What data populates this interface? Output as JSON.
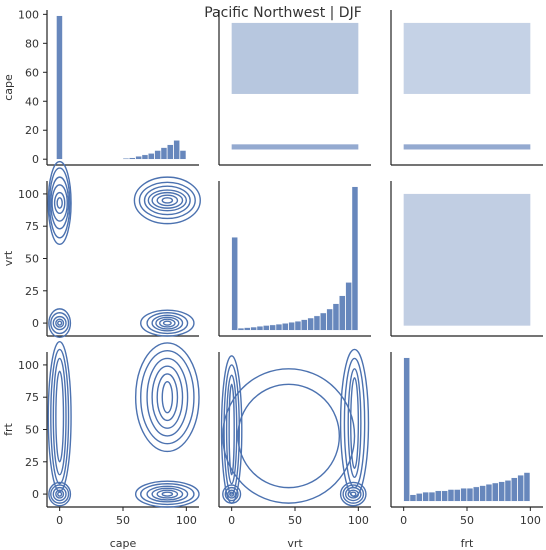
{
  "title": "Pacific Northwest | DJF",
  "colors": {
    "accent": "#4c72b0",
    "accent_dark": "#2c3f63",
    "fill_light": "#4c72b0"
  },
  "chart_data": {
    "type": "pairplot",
    "title": "Pacific Northwest | DJF",
    "variables": [
      "cape",
      "vrt",
      "frt"
    ],
    "axis_range": [
      -10,
      110
    ],
    "ticks": [
      0,
      50,
      100
    ],
    "diag_y_ticks": [
      0,
      20,
      40,
      60,
      80,
      100
    ],
    "offdiag_y_ticks": [
      0,
      25,
      50,
      75,
      100
    ],
    "grid": false,
    "panels": [
      {
        "id": "cape-hist",
        "row": "cape",
        "col": "cape",
        "kind": "histogram",
        "bars": [
          {
            "x": 0,
            "h": 99
          },
          {
            "x": 52.5,
            "h": 0.6
          },
          {
            "x": 57.5,
            "h": 1
          },
          {
            "x": 62.5,
            "h": 2
          },
          {
            "x": 67.5,
            "h": 3
          },
          {
            "x": 72.5,
            "h": 4
          },
          {
            "x": 77.5,
            "h": 6
          },
          {
            "x": 82.5,
            "h": 8
          },
          {
            "x": 87.5,
            "h": 10
          },
          {
            "x": 92.5,
            "h": 13
          },
          {
            "x": 97.5,
            "h": 6
          }
        ]
      },
      {
        "id": "vrt-hist",
        "row": "vrt",
        "col": "vrt",
        "kind": "histogram",
        "bars": [
          {
            "x": 2.5,
            "h": 35
          },
          {
            "x": 7.5,
            "h": 0.8
          },
          {
            "x": 12.5,
            "h": 1
          },
          {
            "x": 17.5,
            "h": 1.2
          },
          {
            "x": 22.5,
            "h": 1.5
          },
          {
            "x": 27.5,
            "h": 1.8
          },
          {
            "x": 32.5,
            "h": 2
          },
          {
            "x": 37.5,
            "h": 2.3
          },
          {
            "x": 42.5,
            "h": 2.6
          },
          {
            "x": 47.5,
            "h": 3
          },
          {
            "x": 52.5,
            "h": 3.4
          },
          {
            "x": 57.5,
            "h": 4
          },
          {
            "x": 62.5,
            "h": 4.6
          },
          {
            "x": 67.5,
            "h": 5.4
          },
          {
            "x": 72.5,
            "h": 6.5
          },
          {
            "x": 77.5,
            "h": 8
          },
          {
            "x": 82.5,
            "h": 10
          },
          {
            "x": 87.5,
            "h": 13
          },
          {
            "x": 92.5,
            "h": 18
          },
          {
            "x": 97.5,
            "h": 54
          }
        ]
      },
      {
        "id": "frt-hist",
        "row": "frt",
        "col": "frt",
        "kind": "histogram",
        "bars": [
          {
            "x": 2.5,
            "h": 110
          },
          {
            "x": 7.5,
            "h": 5
          },
          {
            "x": 12.5,
            "h": 6
          },
          {
            "x": 17.5,
            "h": 7
          },
          {
            "x": 22.5,
            "h": 7
          },
          {
            "x": 27.5,
            "h": 8
          },
          {
            "x": 32.5,
            "h": 8
          },
          {
            "x": 37.5,
            "h": 9
          },
          {
            "x": 42.5,
            "h": 9
          },
          {
            "x": 47.5,
            "h": 10
          },
          {
            "x": 52.5,
            "h": 10
          },
          {
            "x": 57.5,
            "h": 11
          },
          {
            "x": 62.5,
            "h": 12
          },
          {
            "x": 67.5,
            "h": 13
          },
          {
            "x": 72.5,
            "h": 14
          },
          {
            "x": 77.5,
            "h": 15
          },
          {
            "x": 82.5,
            "h": 16
          },
          {
            "x": 87.5,
            "h": 18
          },
          {
            "x": 92.5,
            "h": 20
          },
          {
            "x": 97.5,
            "h": 22
          }
        ]
      },
      {
        "id": "vrt-vs-cape",
        "row": "cape",
        "col": "vrt",
        "kind": "hist2d",
        "x_range": [
          0,
          100
        ],
        "bands": [
          {
            "y_range": [
              2,
              6
            ],
            "color": "#4c72b0",
            "opacity": 0.6
          },
          {
            "y_range": [
              45,
              100
            ],
            "color": "#4c72b0",
            "opacity": 0.4
          }
        ]
      },
      {
        "id": "frt-vs-cape",
        "row": "cape",
        "col": "frt",
        "kind": "hist2d",
        "x_range": [
          0,
          100
        ],
        "bands": [
          {
            "y_range": [
              2,
              6
            ],
            "color": "#4c72b0",
            "opacity": 0.6
          },
          {
            "y_range": [
              45,
              100
            ],
            "color": "#4c72b0",
            "opacity": 0.32
          }
        ]
      },
      {
        "id": "frt-vs-vrt",
        "row": "vrt",
        "col": "frt",
        "kind": "hist2d",
        "x_range": [
          0,
          100
        ],
        "bands": [
          {
            "y_range": [
              -2,
              100
            ],
            "color": "#4c72b0",
            "opacity": 0.35
          }
        ]
      },
      {
        "id": "cape-vs-vrt",
        "row": "vrt",
        "col": "cape",
        "kind": "kde",
        "blobs": [
          {
            "x": 0,
            "y": 93,
            "rx": [
              2,
              4,
              6,
              7,
              8,
              9
            ],
            "ry": [
              4,
              8,
              14,
              20,
              27,
              32
            ]
          },
          {
            "x": 0,
            "y": 0,
            "rx": [
              1.5,
              3,
              5,
              7,
              8.5
            ],
            "ry": [
              1.5,
              3,
              5,
              8,
              11
            ]
          },
          {
            "x": 85,
            "y": 95,
            "rx": [
              4,
              8,
              12,
              15,
              18,
              22,
              26
            ],
            "ry": [
              2,
              4,
              6,
              8,
              11,
              14,
              18
            ]
          },
          {
            "x": 85,
            "y": 0,
            "rx": [
              3,
              6,
              9,
              12,
              16,
              21
            ],
            "ry": [
              1.5,
              3,
              4.5,
              6,
              8,
              10
            ]
          }
        ]
      },
      {
        "id": "cape-vs-frt",
        "row": "frt",
        "col": "cape",
        "kind": "kde",
        "blobs": [
          {
            "x": 0,
            "y": 60,
            "rx": [
              3,
              5,
              7,
              9
            ],
            "ry": [
              35,
              45,
              52,
              58
            ]
          },
          {
            "x": 0,
            "y": 0,
            "rx": [
              1.5,
              3,
              5,
              7,
              8.5
            ],
            "ry": [
              1.5,
              3,
              5,
              7,
              9
            ]
          },
          {
            "x": 85,
            "y": 75,
            "rx": [
              4,
              8,
              12,
              16,
              21,
              25
            ],
            "ry": [
              12,
              18,
              24,
              30,
              36,
              42
            ]
          },
          {
            "x": 85,
            "y": 0,
            "rx": [
              4,
              8,
              12,
              16,
              21,
              25
            ],
            "ry": [
              1.5,
              3,
              4.5,
              6,
              8,
              10
            ]
          }
        ]
      },
      {
        "id": "vrt-vs-frt",
        "row": "frt",
        "col": "vrt",
        "kind": "kde",
        "blobs": [
          {
            "x": 0,
            "y": 50,
            "rx": [
              2,
              4,
              6,
              8
            ],
            "ry": [
              35,
              42,
              50,
              57
            ]
          },
          {
            "x": 0,
            "y": 0,
            "rx": [
              1.5,
              3,
              5,
              7
            ],
            "ry": [
              1.5,
              3,
              5,
              7
            ]
          },
          {
            "x": 97,
            "y": 55,
            "rx": [
              3,
              5,
              8,
              11
            ],
            "ry": [
              35,
              42,
              50,
              57
            ]
          },
          {
            "x": 96,
            "y": 0,
            "rx": [
              2,
              4,
              6,
              8,
              10
            ],
            "ry": [
              1.5,
              3,
              5,
              7,
              9
            ]
          },
          {
            "x": 45,
            "y": 45,
            "rx": [
              40,
              52
            ],
            "ry": [
              40,
              52
            ]
          }
        ]
      }
    ]
  }
}
